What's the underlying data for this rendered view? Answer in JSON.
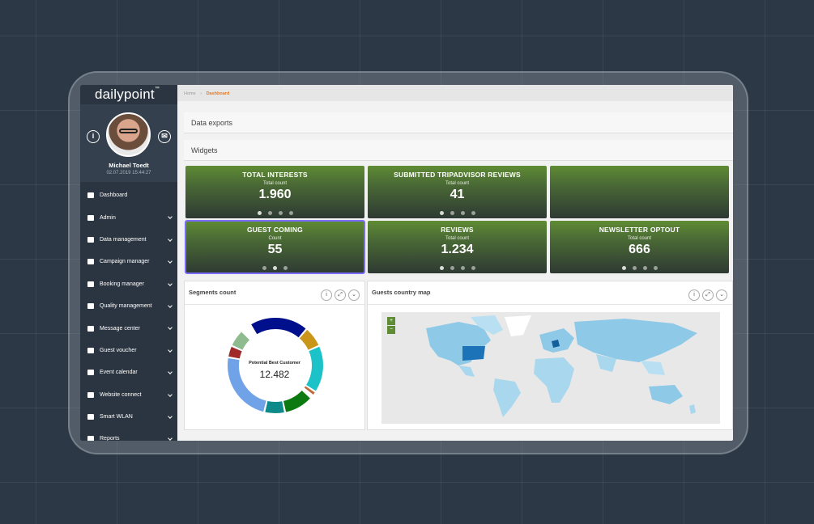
{
  "app": {
    "logo": "dailypoint",
    "logo_tm": "™"
  },
  "profile": {
    "name": "Michael Toedt",
    "date": "02.07.2019 15:44:27",
    "info_icon": "info-icon",
    "mail_icon": "mail-icon"
  },
  "nav": [
    {
      "label": "Dashboard",
      "icon": "monitor-icon",
      "chevron": false
    },
    {
      "label": "Admin",
      "icon": "lock-icon",
      "chevron": true
    },
    {
      "label": "Data management",
      "icon": "table-icon",
      "chevron": true
    },
    {
      "label": "Campaign manager",
      "icon": "globe-icon",
      "chevron": true
    },
    {
      "label": "Booking manager",
      "icon": "book-icon",
      "chevron": true
    },
    {
      "label": "Quality management",
      "icon": "check-circle-icon",
      "chevron": true
    },
    {
      "label": "Message center",
      "icon": "chat-icon",
      "chevron": true
    },
    {
      "label": "Guest voucher",
      "icon": "gift-icon",
      "chevron": true
    },
    {
      "label": "Event calendar",
      "icon": "calendar-icon",
      "chevron": true
    },
    {
      "label": "Website connect",
      "icon": "link-icon",
      "chevron": true
    },
    {
      "label": "Smart WLAN",
      "icon": "wifi-icon",
      "chevron": true
    },
    {
      "label": "Reports",
      "icon": "chart-icon",
      "chevron": true
    }
  ],
  "breadcrumb": {
    "home": "Home",
    "separator": "›",
    "current": "Dashboard"
  },
  "panels": {
    "data_exports": "Data exports",
    "widgets": "Widgets"
  },
  "tiles": [
    {
      "title": "TOTAL INTERESTS",
      "sub": "Total count",
      "value": "1.960",
      "dots": 4,
      "active": 0
    },
    {
      "title": "SUBMITTED TRIPADVISOR REVIEWS",
      "sub": "Total count",
      "value": "41",
      "dots": 4,
      "active": 0
    },
    {
      "title": "",
      "sub": "",
      "value": "",
      "dots": 0,
      "active": -1
    },
    {
      "title": "GUEST COMING",
      "sub": "Count",
      "value": "55",
      "dots": 3,
      "active": 1
    },
    {
      "title": "REVIEWS",
      "sub": "Total count",
      "value": "1.234",
      "dots": 4,
      "active": 0
    },
    {
      "title": "NEWSLETTER OPTOUT",
      "sub": "Total count",
      "value": "666",
      "dots": 4,
      "active": 0
    }
  ],
  "segments": {
    "title": "Segments count",
    "center_label": "Potential Best Customer",
    "center_value": "12.482",
    "slice_colors": [
      "#000f8c",
      "#c9961a",
      "#1bc3c8",
      "#c06a3a",
      "#ffffff",
      "#0c7a10",
      "#0f8a8a",
      "#6fa2e6",
      "#a02a2a",
      "#8fbc8f"
    ]
  },
  "map": {
    "title": "Guests country map",
    "zoom_in": "+",
    "zoom_out": "−"
  },
  "tools": {
    "info": "i",
    "expand": "⤢",
    "collapse": "⌄"
  }
}
